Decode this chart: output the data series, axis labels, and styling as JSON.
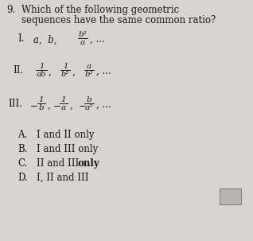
{
  "question_number": "9.",
  "question_line1": "Which of the following geometric",
  "question_line2": "sequences have the same common ratio?",
  "bg_color": "#d8d4cf",
  "text_color": "#1a1a1a",
  "font_size": 8.5,
  "box_color": "#b8b4ae",
  "box_edge": "#888480"
}
